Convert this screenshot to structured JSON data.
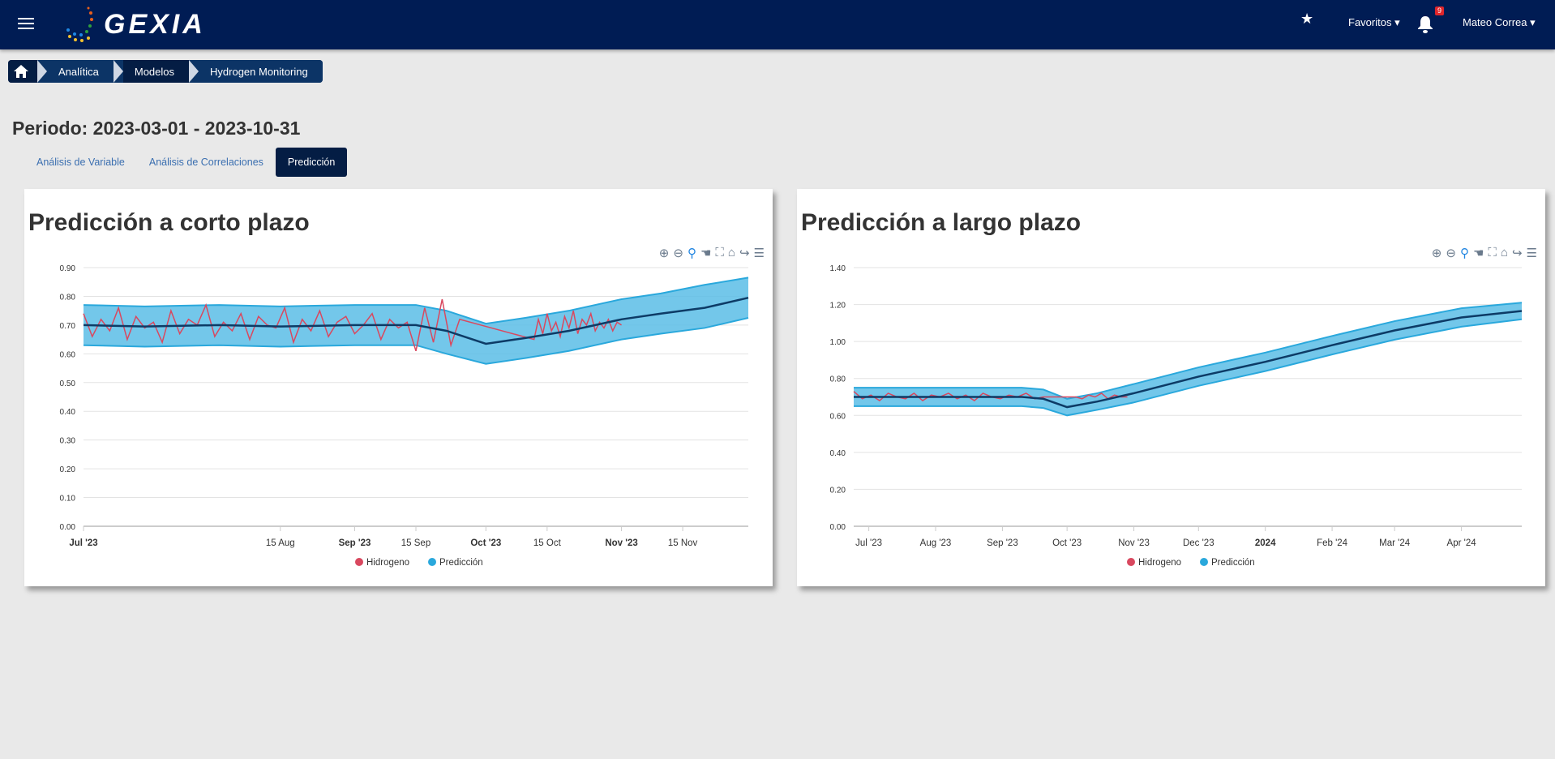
{
  "header": {
    "logo": "GEXIA",
    "favoritos": "Favoritos",
    "notifications": "9",
    "user": "Mateo Correa"
  },
  "breadcrumb": [
    "Analítica",
    "Modelos",
    "Hydrogen Monitoring"
  ],
  "period_title": "Periodo: 2023-03-01 - 2023-10-31",
  "tabs": [
    "Análisis de Variable",
    "Análisis de Correlaciones",
    "Predicción"
  ],
  "colors": {
    "hydrogen": "#d9485f",
    "band": "#5bbde6",
    "band_edge": "#2aa8dc",
    "mean": "#0d3b66"
  },
  "chart_data": [
    {
      "type": "line",
      "title": "Predicción a corto plazo",
      "legend": [
        "Hidrogeno",
        "Predicción"
      ],
      "legend_position": "bottom-center",
      "xlim": [
        "2023-07-01",
        "2023-11-30"
      ],
      "ylim": [
        0,
        0.9
      ],
      "yticks": [
        "0.00",
        "0.10",
        "0.20",
        "0.30",
        "0.40",
        "0.50",
        "0.60",
        "0.70",
        "0.80",
        "0.90"
      ],
      "xticks": [
        [
          "2023-07-01",
          "Jul '23",
          true
        ],
        [
          "2023-08-15",
          "15 Aug",
          false
        ],
        [
          "2023-09-01",
          "Sep '23",
          true
        ],
        [
          "2023-09-15",
          "15 Sep",
          false
        ],
        [
          "2023-10-01",
          "Oct '23",
          true
        ],
        [
          "2023-10-15",
          "15 Oct",
          false
        ],
        [
          "2023-11-01",
          "Nov '23",
          true
        ],
        [
          "2023-11-15",
          "15 Nov",
          false
        ]
      ],
      "prediction": [
        [
          "2023-07-01",
          0.63,
          0.7,
          0.77
        ],
        [
          "2023-07-15",
          0.625,
          0.695,
          0.765
        ],
        [
          "2023-08-01",
          0.63,
          0.7,
          0.77
        ],
        [
          "2023-08-15",
          0.625,
          0.695,
          0.765
        ],
        [
          "2023-09-01",
          0.63,
          0.7,
          0.77
        ],
        [
          "2023-09-15",
          0.63,
          0.7,
          0.77
        ],
        [
          "2023-09-22",
          0.6,
          0.68,
          0.75
        ],
        [
          "2023-10-01",
          0.565,
          0.635,
          0.705
        ],
        [
          "2023-10-10",
          0.585,
          0.655,
          0.725
        ],
        [
          "2023-10-20",
          0.61,
          0.68,
          0.75
        ],
        [
          "2023-11-01",
          0.65,
          0.72,
          0.79
        ],
        [
          "2023-11-10",
          0.67,
          0.74,
          0.81
        ],
        [
          "2023-11-20",
          0.69,
          0.76,
          0.84
        ],
        [
          "2023-11-30",
          0.725,
          0.795,
          0.865
        ]
      ],
      "hydrogen": [
        {
          "start": "2023-07-01",
          "step_days": 2,
          "values": [
            0.74,
            0.66,
            0.72,
            0.68,
            0.76,
            0.65,
            0.73,
            0.69,
            0.71,
            0.64,
            0.75,
            0.67,
            0.72,
            0.7,
            0.77,
            0.66,
            0.71,
            0.68,
            0.74,
            0.65,
            0.73,
            0.7,
            0.69,
            0.76,
            0.64,
            0.72,
            0.68,
            0.75,
            0.66,
            0.71,
            0.73,
            0.67,
            0.7,
            0.74,
            0.65,
            0.72,
            0.69,
            0.71,
            0.61,
            0.76,
            0.64,
            0.79,
            0.63,
            0.72
          ]
        },
        {
          "start": "2023-10-12",
          "step_days": 1,
          "values": [
            0.65,
            0.72,
            0.67,
            0.74,
            0.68,
            0.71,
            0.66,
            0.73,
            0.69,
            0.75,
            0.67,
            0.72,
            0.7,
            0.74,
            0.68,
            0.71,
            0.69,
            0.72,
            0.68,
            0.71,
            0.7
          ]
        }
      ]
    },
    {
      "type": "line",
      "title": "Predicción a largo plazo",
      "legend": [
        "Hidrogeno",
        "Predicción"
      ],
      "legend_position": "bottom-center",
      "xlim": [
        "2023-06-24",
        "2024-04-29"
      ],
      "ylim": [
        0,
        1.4
      ],
      "yticks": [
        "0.00",
        "0.20",
        "0.40",
        "0.60",
        "0.80",
        "1.00",
        "1.20",
        "1.40"
      ],
      "xticks": [
        [
          "2023-07-01",
          "Jul '23",
          false
        ],
        [
          "2023-08-01",
          "Aug '23",
          false
        ],
        [
          "2023-09-01",
          "Sep '23",
          false
        ],
        [
          "2023-10-01",
          "Oct '23",
          false
        ],
        [
          "2023-11-01",
          "Nov '23",
          false
        ],
        [
          "2023-12-01",
          "Dec '23",
          false
        ],
        [
          "2024-01-01",
          "2024",
          true
        ],
        [
          "2024-02-01",
          "Feb '24",
          false
        ],
        [
          "2024-03-01",
          "Mar '24",
          false
        ],
        [
          "2024-04-01",
          "Apr '24",
          false
        ]
      ],
      "prediction": [
        [
          "2023-06-24",
          0.65,
          0.7,
          0.75
        ],
        [
          "2023-08-01",
          0.65,
          0.7,
          0.75
        ],
        [
          "2023-09-10",
          0.65,
          0.7,
          0.75
        ],
        [
          "2023-09-20",
          0.64,
          0.69,
          0.74
        ],
        [
          "2023-10-01",
          0.6,
          0.645,
          0.69
        ],
        [
          "2023-10-15",
          0.63,
          0.675,
          0.72
        ],
        [
          "2023-11-01",
          0.67,
          0.72,
          0.77
        ],
        [
          "2023-12-01",
          0.76,
          0.81,
          0.86
        ],
        [
          "2024-01-01",
          0.84,
          0.89,
          0.94
        ],
        [
          "2024-02-01",
          0.93,
          0.98,
          1.03
        ],
        [
          "2024-03-01",
          1.01,
          1.06,
          1.11
        ],
        [
          "2024-04-01",
          1.08,
          1.13,
          1.18
        ],
        [
          "2024-04-29",
          1.12,
          1.165,
          1.21
        ]
      ],
      "hydrogen": [
        {
          "start": "2023-06-24",
          "step_days": 4,
          "values": [
            0.73,
            0.69,
            0.71,
            0.68,
            0.72,
            0.7,
            0.69,
            0.72,
            0.68,
            0.71,
            0.7,
            0.72,
            0.69,
            0.71,
            0.68,
            0.72,
            0.7,
            0.69,
            0.71,
            0.7,
            0.72,
            0.69,
            0.7
          ]
        },
        {
          "start": "2023-10-05",
          "step_days": 3,
          "values": [
            0.7,
            0.69,
            0.71,
            0.7,
            0.72,
            0.69,
            0.71,
            0.7,
            0.7
          ]
        }
      ]
    }
  ]
}
